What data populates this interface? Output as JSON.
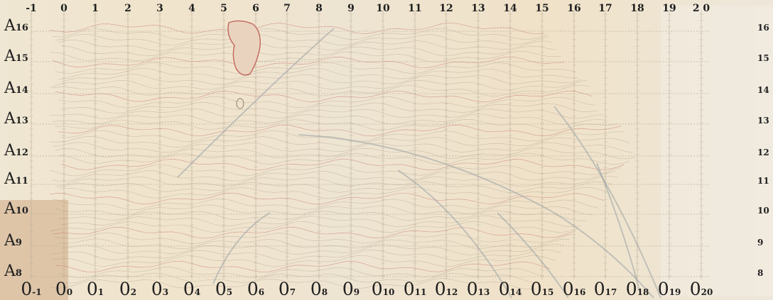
{
  "map": {
    "column_labels": [
      "-1",
      "0",
      "1",
      "2",
      "3",
      "4",
      "5",
      "6",
      "7",
      "8",
      "9",
      "10",
      "11",
      "12",
      "13",
      "14",
      "15",
      "16",
      "17",
      "18",
      "19",
      "2 0"
    ],
    "row_labels_left": [
      {
        "letter": "A",
        "num": "16"
      },
      {
        "letter": "A",
        "num": "15"
      },
      {
        "letter": "A",
        "num": "14"
      },
      {
        "letter": "A",
        "num": "13"
      },
      {
        "letter": "A",
        "num": "12"
      },
      {
        "letter": "A",
        "num": "11"
      },
      {
        "letter": "A",
        "num": "10"
      },
      {
        "letter": "A",
        "num": "9"
      },
      {
        "letter": "A",
        "num": "8"
      }
    ],
    "row_labels_right": [
      "16",
      "15",
      "14",
      "13",
      "12",
      "11",
      "10",
      "9",
      "8"
    ],
    "bottom_labels": [
      {
        "letter": "0",
        "num": "-1"
      },
      {
        "letter": "0",
        "num": "0"
      },
      {
        "letter": "0",
        "num": "1"
      },
      {
        "letter": "0",
        "num": "2"
      },
      {
        "letter": "0",
        "num": "3"
      },
      {
        "letter": "0",
        "num": "4"
      },
      {
        "letter": "0",
        "num": "5"
      },
      {
        "letter": "0",
        "num": "6"
      },
      {
        "letter": "0",
        "num": "7"
      },
      {
        "letter": "0",
        "num": "8"
      },
      {
        "letter": "0",
        "num": "9"
      },
      {
        "letter": "0",
        "num": "10"
      },
      {
        "letter": "0",
        "num": "11"
      },
      {
        "letter": "0",
        "num": "12"
      },
      {
        "letter": "0",
        "num": "13"
      },
      {
        "letter": "0",
        "num": "14"
      },
      {
        "letter": "0",
        "num": "15"
      },
      {
        "letter": "0",
        "num": "16"
      },
      {
        "letter": "0",
        "num": "17"
      },
      {
        "letter": "0",
        "num": "18"
      },
      {
        "letter": "0",
        "num": "19"
      },
      {
        "letter": "0",
        "num": "20"
      }
    ]
  },
  "colors": {
    "paper": "#efe6d3",
    "ink": "#1f1f1f",
    "grid_line": "#b9ad98",
    "contour": "#8c7b68",
    "contour_red": "#c2675c",
    "pencil": "#9aa3a6",
    "stain": "#d8b99a"
  }
}
